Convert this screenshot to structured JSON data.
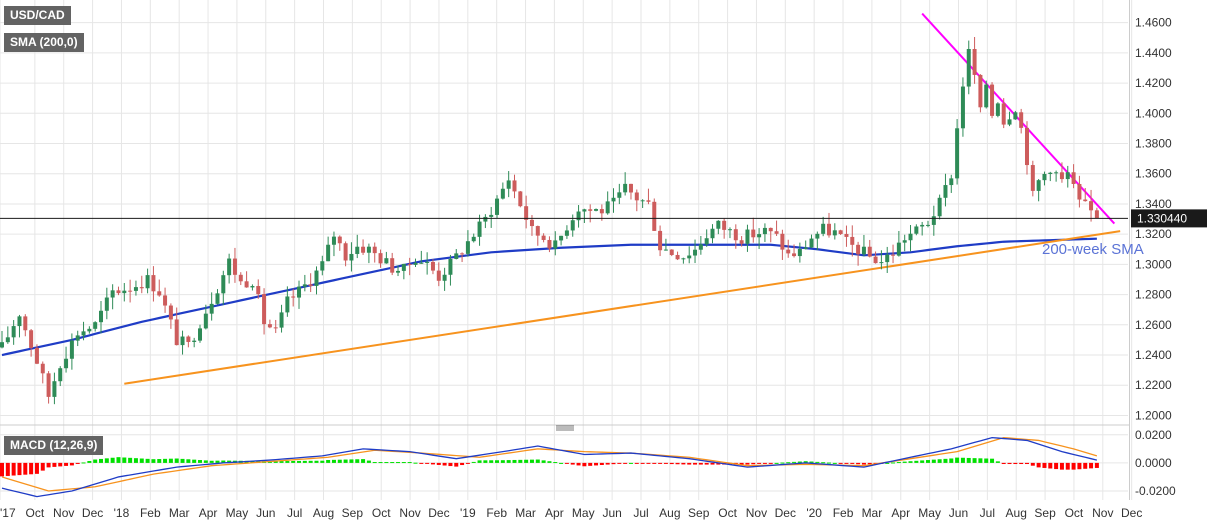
{
  "instrument": "USD/CAD",
  "sma_label": "SMA (200,0)",
  "macd_label": "MACD (12,26,9)",
  "current_price_label": "1.330440",
  "sma_annotation": "200-week SMA",
  "colors": {
    "bull": "#26a69a",
    "bear": "#d9534f",
    "bull_candle": "#2e8b57",
    "bear_candle": "#cd5c5c",
    "sma": "#1f3cc6",
    "trend_support": "#f7931e",
    "trend_resistance": "#ff00ff",
    "macd_line": "#1f3cc6",
    "signal_line": "#f7931e",
    "hist_pos": "#00e000",
    "hist_neg": "#ff0000",
    "annotation": "#5b73d6"
  },
  "chart_data": [
    {
      "type": "candlestick",
      "title": "USD/CAD",
      "timeframe": "weekly",
      "ylim": [
        1.195,
        1.475
      ],
      "y_ticks": [
        "1.4600",
        "1.4400",
        "1.4200",
        "1.4000",
        "1.3800",
        "1.3600",
        "1.3400",
        "1.3200",
        "1.3000",
        "1.2800",
        "1.2600",
        "1.2400",
        "1.2200",
        "1.2000"
      ],
      "x_ticks": [
        "'17",
        "Oct",
        "Nov",
        "Dec",
        "'18",
        "Feb",
        "Mar",
        "Apr",
        "May",
        "Jun",
        "Jul",
        "Aug",
        "Sep",
        "Oct",
        "Nov",
        "Dec",
        "'19",
        "Feb",
        "Mar",
        "Apr",
        "May",
        "Jun",
        "Jul",
        "Aug",
        "Sep",
        "Oct",
        "Nov",
        "Dec",
        "'20",
        "Feb",
        "Mar",
        "Apr",
        "May",
        "Jun",
        "Jul",
        "Aug",
        "Sep",
        "Oct",
        "Nov",
        "Dec"
      ],
      "current_price": 1.33044,
      "close_path": [
        [
          0,
          1.245
        ],
        [
          3,
          1.268
        ],
        [
          6,
          1.236
        ],
        [
          8,
          1.213
        ],
        [
          10,
          1.235
        ],
        [
          13,
          1.255
        ],
        [
          16,
          1.26
        ],
        [
          19,
          1.282
        ],
        [
          22,
          1.285
        ],
        [
          25,
          1.29
        ],
        [
          27,
          1.282
        ],
        [
          30,
          1.25
        ],
        [
          32,
          1.246
        ],
        [
          34,
          1.262
        ],
        [
          37,
          1.285
        ],
        [
          39,
          1.302
        ],
        [
          41,
          1.288
        ],
        [
          43,
          1.29
        ],
        [
          45,
          1.262
        ],
        [
          47,
          1.255
        ],
        [
          49,
          1.275
        ],
        [
          51,
          1.282
        ],
        [
          53,
          1.29
        ],
        [
          55,
          1.3
        ],
        [
          57,
          1.32
        ],
        [
          59,
          1.306
        ],
        [
          61,
          1.312
        ],
        [
          63,
          1.31
        ],
        [
          65,
          1.304
        ],
        [
          67,
          1.298
        ],
        [
          69,
          1.296
        ],
        [
          71,
          1.305
        ],
        [
          73,
          1.3
        ],
        [
          75,
          1.292
        ],
        [
          77,
          1.3
        ],
        [
          79,
          1.31
        ],
        [
          81,
          1.32
        ],
        [
          83,
          1.33
        ],
        [
          85,
          1.343
        ],
        [
          87,
          1.357
        ],
        [
          89,
          1.34
        ],
        [
          91,
          1.322
        ],
        [
          93,
          1.318
        ],
        [
          95,
          1.312
        ],
        [
          97,
          1.326
        ],
        [
          99,
          1.338
        ],
        [
          101,
          1.336
        ],
        [
          103,
          1.336
        ],
        [
          105,
          1.34
        ],
        [
          107,
          1.35
        ],
        [
          109,
          1.344
        ],
        [
          111,
          1.34
        ],
        [
          113,
          1.312
        ],
        [
          115,
          1.308
        ],
        [
          117,
          1.306
        ],
        [
          119,
          1.31
        ],
        [
          121,
          1.32
        ],
        [
          123,
          1.326
        ],
        [
          125,
          1.322
        ],
        [
          127,
          1.318
        ],
        [
          129,
          1.32
        ],
        [
          131,
          1.322
        ],
        [
          133,
          1.318
        ],
        [
          135,
          1.306
        ],
        [
          137,
          1.308
        ],
        [
          139,
          1.318
        ],
        [
          141,
          1.323
        ],
        [
          143,
          1.321
        ],
        [
          145,
          1.314
        ],
        [
          147,
          1.31
        ],
        [
          149,
          1.305
        ],
        [
          151,
          1.302
        ],
        [
          153,
          1.308
        ],
        [
          155,
          1.318
        ],
        [
          157,
          1.322
        ],
        [
          159,
          1.328
        ],
        [
          161,
          1.34
        ],
        [
          163,
          1.36
        ],
        [
          164,
          1.39
        ],
        [
          165,
          1.42
        ],
        [
          166,
          1.44
        ],
        [
          167,
          1.425
        ],
        [
          168,
          1.4
        ],
        [
          169,
          1.42
        ],
        [
          170,
          1.4
        ],
        [
          171,
          1.41
        ],
        [
          172,
          1.395
        ],
        [
          173,
          1.4
        ],
        [
          174,
          1.405
        ],
        [
          175,
          1.39
        ],
        [
          176,
          1.37
        ],
        [
          177,
          1.345
        ],
        [
          178,
          1.355
        ],
        [
          179,
          1.36
        ],
        [
          180,
          1.365
        ],
        [
          181,
          1.36
        ],
        [
          182,
          1.355
        ],
        [
          183,
          1.36
        ],
        [
          184,
          1.35
        ],
        [
          185,
          1.34
        ],
        [
          186,
          1.338
        ],
        [
          187,
          1.335
        ],
        [
          188,
          1.33044
        ]
      ],
      "sma_200": [
        [
          0,
          1.24
        ],
        [
          12,
          1.25
        ],
        [
          24,
          1.262
        ],
        [
          36,
          1.272
        ],
        [
          48,
          1.282
        ],
        [
          60,
          1.292
        ],
        [
          72,
          1.302
        ],
        [
          84,
          1.308
        ],
        [
          96,
          1.311
        ],
        [
          108,
          1.313
        ],
        [
          120,
          1.313
        ],
        [
          132,
          1.313
        ],
        [
          140,
          1.31
        ],
        [
          148,
          1.306
        ],
        [
          156,
          1.308
        ],
        [
          164,
          1.312
        ],
        [
          172,
          1.315
        ],
        [
          180,
          1.316
        ],
        [
          188,
          1.317
        ]
      ],
      "support_trendline": [
        [
          21,
          1.221
        ],
        [
          192,
          1.322
        ]
      ],
      "resistance_trendline": [
        [
          158,
          1.466
        ],
        [
          191,
          1.327
        ]
      ]
    },
    {
      "type": "line",
      "title": "MACD (12,26,9)",
      "ylim": [
        -0.025,
        0.022
      ],
      "y_ticks": [
        "0.0200",
        "0.0000",
        "-0.0200"
      ],
      "series": [
        {
          "name": "MACD",
          "values": [
            [
              0,
              -0.018
            ],
            [
              6,
              -0.024
            ],
            [
              12,
              -0.02
            ],
            [
              20,
              -0.01
            ],
            [
              30,
              -0.003
            ],
            [
              38,
              0.0
            ],
            [
              46,
              0.002
            ],
            [
              55,
              0.005
            ],
            [
              62,
              0.01
            ],
            [
              70,
              0.008
            ],
            [
              78,
              0.003
            ],
            [
              86,
              0.008
            ],
            [
              92,
              0.012
            ],
            [
              100,
              0.006
            ],
            [
              108,
              0.007
            ],
            [
              118,
              0.003
            ],
            [
              128,
              -0.003
            ],
            [
              138,
              0.0
            ],
            [
              148,
              -0.003
            ],
            [
              156,
              0.004
            ],
            [
              163,
              0.01
            ],
            [
              170,
              0.018
            ],
            [
              176,
              0.016
            ],
            [
              182,
              0.008
            ],
            [
              188,
              0.002
            ]
          ]
        },
        {
          "name": "Signal",
          "values": [
            [
              0,
              -0.01
            ],
            [
              8,
              -0.02
            ],
            [
              16,
              -0.017
            ],
            [
              26,
              -0.008
            ],
            [
              36,
              -0.002
            ],
            [
              46,
              0.001
            ],
            [
              56,
              0.004
            ],
            [
              64,
              0.009
            ],
            [
              72,
              0.007
            ],
            [
              82,
              0.004
            ],
            [
              92,
              0.01
            ],
            [
              100,
              0.008
            ],
            [
              108,
              0.007
            ],
            [
              118,
              0.004
            ],
            [
              128,
              -0.002
            ],
            [
              138,
              -0.001
            ],
            [
              148,
              -0.002
            ],
            [
              156,
              0.003
            ],
            [
              164,
              0.008
            ],
            [
              172,
              0.018
            ],
            [
              178,
              0.016
            ],
            [
              184,
              0.01
            ],
            [
              188,
              0.005
            ]
          ]
        }
      ]
    }
  ]
}
